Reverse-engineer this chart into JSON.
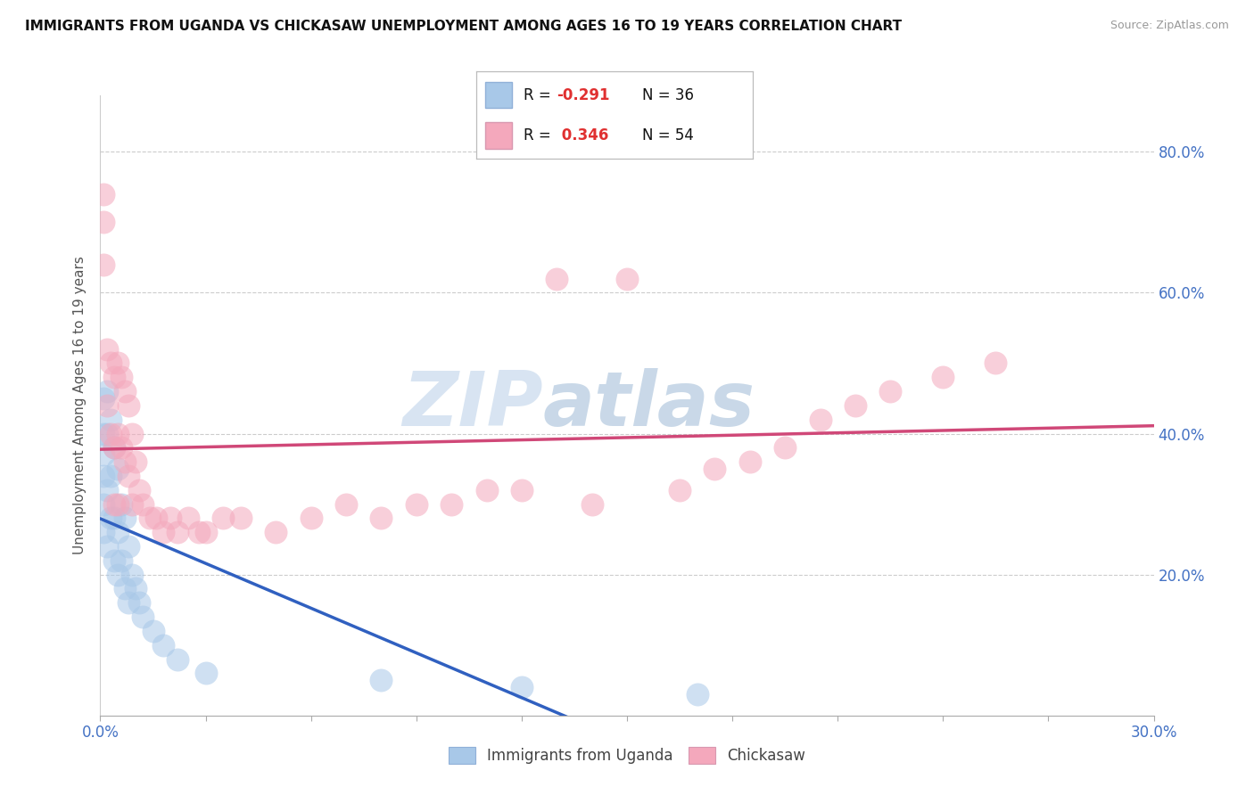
{
  "title": "IMMIGRANTS FROM UGANDA VS CHICKASAW UNEMPLOYMENT AMONG AGES 16 TO 19 YEARS CORRELATION CHART",
  "source": "Source: ZipAtlas.com",
  "ylabel": "Unemployment Among Ages 16 to 19 years",
  "ytick_labels": [
    "20.0%",
    "40.0%",
    "60.0%",
    "80.0%"
  ],
  "ytick_vals": [
    0.2,
    0.4,
    0.6,
    0.8
  ],
  "xlim": [
    0.0,
    0.3
  ],
  "ylim": [
    0.0,
    0.88
  ],
  "legend1_r": "R = -0.291",
  "legend1_n": "N = 36",
  "legend2_r": "R =  0.346",
  "legend2_n": "N = 54",
  "legend_color1": "#a8c8e8",
  "legend_color2": "#f4a8bc",
  "scatter_color1": "#a8c8e8",
  "scatter_color2": "#f4a8bc",
  "line_color1": "#3060c0",
  "line_color2": "#d04878",
  "watermark_zip": "ZIP",
  "watermark_atlas": "atlas",
  "uganda_x": [
    0.001,
    0.001,
    0.001,
    0.001,
    0.001,
    0.001,
    0.002,
    0.002,
    0.002,
    0.002,
    0.003,
    0.003,
    0.003,
    0.004,
    0.004,
    0.004,
    0.005,
    0.005,
    0.005,
    0.006,
    0.006,
    0.007,
    0.007,
    0.008,
    0.008,
    0.009,
    0.01,
    0.011,
    0.012,
    0.015,
    0.018,
    0.022,
    0.03,
    0.08,
    0.12,
    0.17
  ],
  "uganda_y": [
    0.45,
    0.4,
    0.37,
    0.34,
    0.3,
    0.26,
    0.46,
    0.4,
    0.32,
    0.24,
    0.42,
    0.34,
    0.28,
    0.38,
    0.28,
    0.22,
    0.35,
    0.26,
    0.2,
    0.3,
    0.22,
    0.28,
    0.18,
    0.24,
    0.16,
    0.2,
    0.18,
    0.16,
    0.14,
    0.12,
    0.1,
    0.08,
    0.06,
    0.05,
    0.04,
    0.03
  ],
  "chickasaw_x": [
    0.001,
    0.001,
    0.001,
    0.002,
    0.002,
    0.003,
    0.003,
    0.004,
    0.004,
    0.004,
    0.005,
    0.005,
    0.005,
    0.006,
    0.006,
    0.007,
    0.007,
    0.008,
    0.008,
    0.009,
    0.009,
    0.01,
    0.011,
    0.012,
    0.014,
    0.016,
    0.018,
    0.02,
    0.022,
    0.025,
    0.028,
    0.03,
    0.035,
    0.04,
    0.05,
    0.06,
    0.07,
    0.08,
    0.09,
    0.1,
    0.11,
    0.12,
    0.13,
    0.14,
    0.15,
    0.165,
    0.175,
    0.185,
    0.195,
    0.205,
    0.215,
    0.225,
    0.24,
    0.255
  ],
  "chickasaw_y": [
    0.74,
    0.7,
    0.64,
    0.52,
    0.44,
    0.5,
    0.4,
    0.48,
    0.38,
    0.3,
    0.5,
    0.4,
    0.3,
    0.48,
    0.38,
    0.46,
    0.36,
    0.44,
    0.34,
    0.4,
    0.3,
    0.36,
    0.32,
    0.3,
    0.28,
    0.28,
    0.26,
    0.28,
    0.26,
    0.28,
    0.26,
    0.26,
    0.28,
    0.28,
    0.26,
    0.28,
    0.3,
    0.28,
    0.3,
    0.3,
    0.32,
    0.32,
    0.62,
    0.3,
    0.62,
    0.32,
    0.35,
    0.36,
    0.38,
    0.42,
    0.44,
    0.46,
    0.48,
    0.5
  ]
}
